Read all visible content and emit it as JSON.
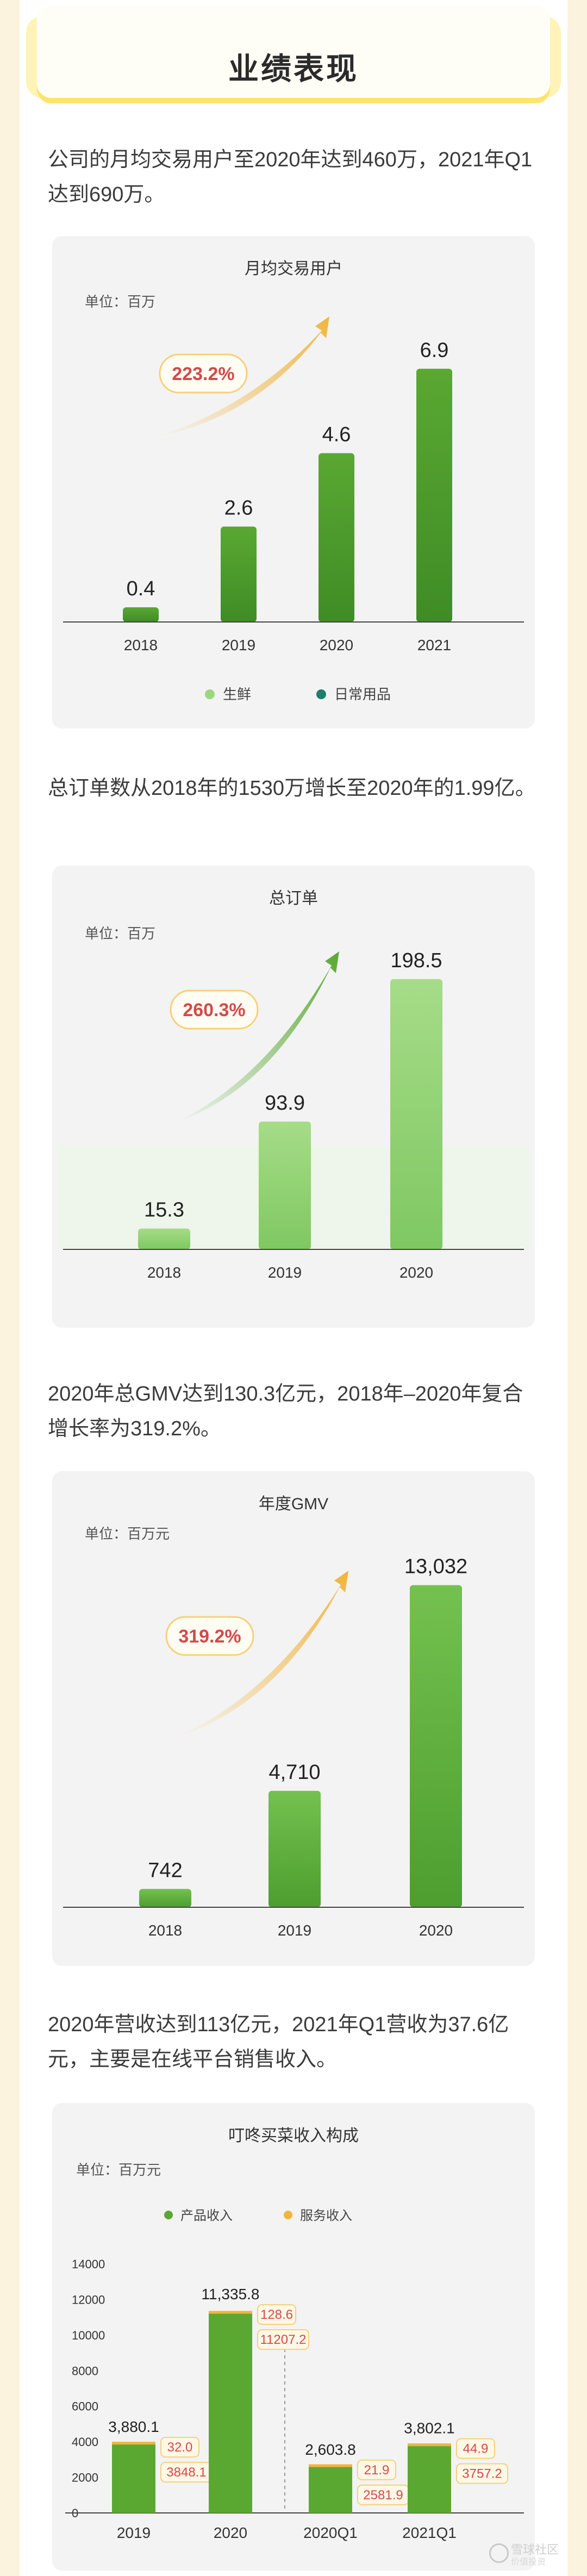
{
  "section_title": "业绩表现",
  "paragraphs": [
    "公司的月均交易用户至2020年达到460万，2021年Q1达到690万。",
    "总订单数从2018年的1530万增长至2020年的1.99亿。",
    "2020年总GMV达到130.3亿元，2018年–2020年复合增长率为319.2%。",
    "2020年营收达到113亿元，2021年Q1营收为37.6亿元，主要是在线平台销售收入。"
  ],
  "colors": {
    "green": "#5aa832",
    "light_green": "#9ad880",
    "yellow": "#f2b43c",
    "teal": "#1f7e6a",
    "red": "#d24a4a"
  },
  "chart_data": [
    {
      "type": "bar",
      "title": "月均交易用户",
      "unit_label": "单位：百万",
      "categories": [
        "2018",
        "2019",
        "2020",
        "2021"
      ],
      "values": [
        0.4,
        2.6,
        4.6,
        6.9
      ],
      "value_labels": [
        "0.4",
        "2.6",
        "4.6",
        "6.9"
      ],
      "growth_label": "223.2%",
      "legend": [
        {
          "name": "生鲜",
          "color": "#9ad880"
        },
        {
          "name": "日常用品",
          "color": "#1f7e6a"
        }
      ],
      "ylim": [
        0,
        8
      ],
      "legend_position": "bottom"
    },
    {
      "type": "bar",
      "title": "总订单",
      "unit_label": "单位：百万",
      "categories": [
        "2018",
        "2019",
        "2020"
      ],
      "values": [
        15.3,
        93.9,
        198.5
      ],
      "value_labels": [
        "15.3",
        "93.9",
        "198.5"
      ],
      "growth_label": "260.3%",
      "ylim": [
        0,
        230
      ]
    },
    {
      "type": "bar",
      "title": "年度GMV",
      "unit_label": "单位：百万元",
      "categories": [
        "2018",
        "2019",
        "2020"
      ],
      "values": [
        742,
        4710,
        13032
      ],
      "value_labels": [
        "742",
        "4,710",
        "13,032"
      ],
      "growth_label": "319.2%",
      "ylim": [
        0,
        15000
      ]
    },
    {
      "type": "bar",
      "stacked": true,
      "title": "叮咚买菜收入构成",
      "unit_label": "单位：百万元",
      "categories": [
        "2019",
        "2020",
        "2020Q1",
        "2021Q1"
      ],
      "series": [
        {
          "name": "产品收入",
          "color": "#5aa832",
          "values": [
            3848.1,
            11207.2,
            2581.9,
            3757.2
          ],
          "labels": [
            "3848.1",
            "11207.2",
            "2581.9",
            "3757.2"
          ]
        },
        {
          "name": "服务收入",
          "color": "#f2b43c",
          "values": [
            32.0,
            128.6,
            21.9,
            44.9
          ],
          "labels": [
            "32.0",
            "128.6",
            "21.9",
            "44.9"
          ]
        }
      ],
      "totals": [
        "3,880.1",
        "11,335.8",
        "2,603.8",
        "3,802.1"
      ],
      "y_ticks": [
        "0",
        "2000",
        "4000",
        "6000",
        "8000",
        "10000",
        "12000",
        "14000"
      ],
      "ylim": [
        0,
        14000
      ],
      "legend_position": "top"
    }
  ],
  "watermark": {
    "line1": "雪球社区",
    "line2": "价值投资"
  }
}
